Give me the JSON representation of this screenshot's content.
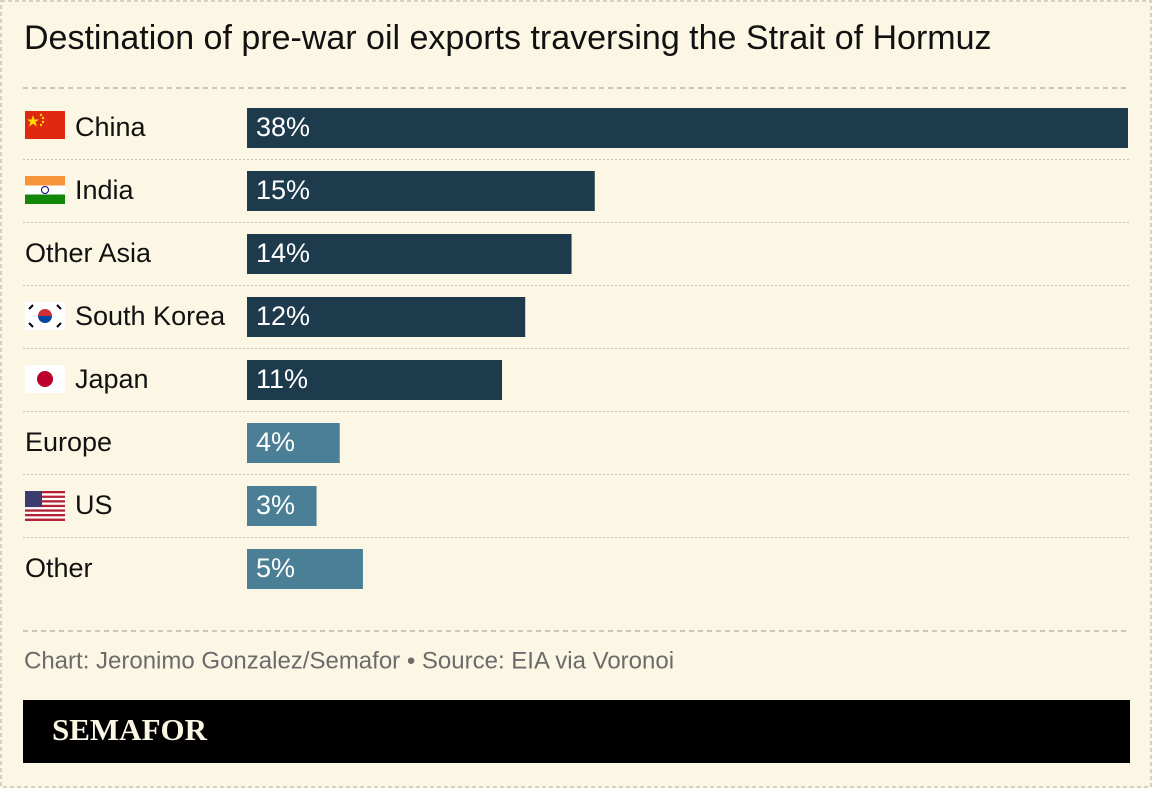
{
  "chart_data": {
    "type": "bar",
    "orientation": "horizontal",
    "title": "Destination of pre-war oil exports traversing the Strait of Hormuz",
    "categories": [
      "China",
      "India",
      "Other Asia",
      "South Korea",
      "Japan",
      "Europe",
      "US",
      "Other"
    ],
    "values": [
      38,
      15,
      14,
      12,
      11,
      4,
      3,
      5
    ],
    "value_labels": [
      "38%",
      "15%",
      "14%",
      "12%",
      "11%",
      "4%",
      "3%",
      "5%"
    ],
    "colors": [
      "#1d3b4d",
      "#1d3b4d",
      "#1d3b4d",
      "#1d3b4d",
      "#1d3b4d",
      "#4a7f95",
      "#4a7f95",
      "#4a7f95"
    ],
    "source": "Chart: Jeronimo Gonzalez/Semafor • Source: EIA via Voronoi",
    "brand": "SEMAFOR"
  }
}
